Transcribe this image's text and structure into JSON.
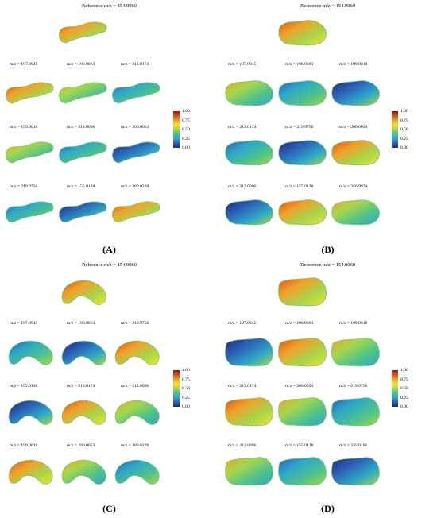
{
  "panels": [
    {
      "label": "(A)",
      "reference": "Reference m/z = 154.0060",
      "rows": [
        [
          "m/z = 197.9945",
          "m/z = 196.9863",
          "m/z = 213.0174"
        ],
        [
          "m/z = 199.0018",
          "m/z = 212.0096",
          "m/z = 200.0053"
        ],
        [
          "m/z = 219.9756",
          "m/z = 155.0138",
          "m/z = 389.0239"
        ]
      ],
      "shape": "banana"
    },
    {
      "label": "(B)",
      "reference": "Reference m/z = 154.0060",
      "rows": [
        [
          "m/z = 197.9945",
          "m/z = 196.9863",
          "m/z = 199.0018"
        ],
        [
          "m/z = 213.0174",
          "m/z = 219.9756",
          "m/z = 200.0053"
        ],
        [
          "m/z = 212.0096",
          "m/z = 155.0138",
          "m/z = 356.9974"
        ]
      ],
      "shape": "blob"
    },
    {
      "label": "(C)",
      "reference": "Reference m/z = 154.0060",
      "rows": [
        [
          "m/z = 197.9945",
          "m/z = 196.9863",
          "m/z = 219.9756"
        ],
        [
          "m/z = 155.0138",
          "m/z = 213.0174",
          "m/z = 212.0096"
        ],
        [
          "m/z = 199.0018",
          "m/z = 200.0053",
          "m/z = 389.0239"
        ]
      ],
      "shape": "arc"
    },
    {
      "label": "(D)",
      "reference": "Reference m/z = 154.0060",
      "rows": [
        [
          "m/z = 197.9945",
          "m/z = 196.9863",
          "m/z = 199.0018"
        ],
        [
          "m/z = 213.0174",
          "m/z = 200.0053",
          "m/z = 219.9756"
        ],
        [
          "m/z = 212.0096",
          "m/z = 155.0138",
          "m/z = 335.0161"
        ]
      ],
      "shape": "square"
    }
  ],
  "colorbar": {
    "ticks": [
      "1.00",
      "0.75",
      "0.50",
      "0.25",
      "0.00"
    ],
    "colors": [
      "#8b1a0c",
      "#d5501b",
      "#f2a02a",
      "#f5e12a",
      "#a6d64c",
      "#4fc28c",
      "#2ea7c8",
      "#2c5db6",
      "#1e2873"
    ]
  }
}
